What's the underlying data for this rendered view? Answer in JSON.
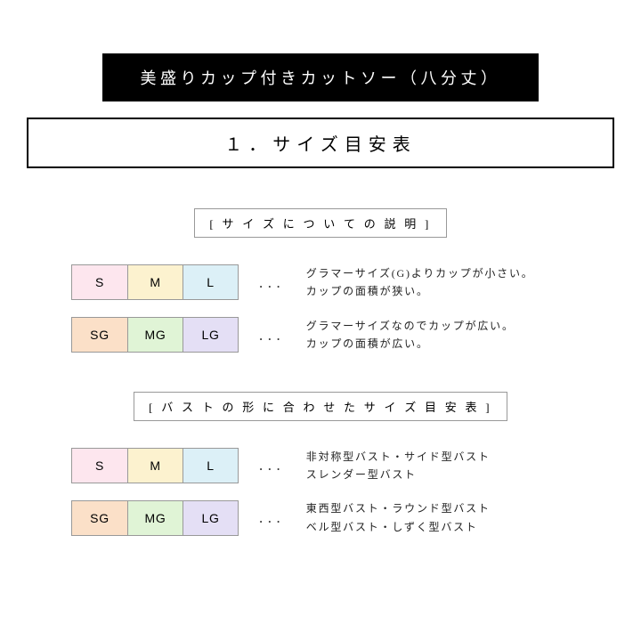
{
  "title": "美盛りカップ付きカットソー（八分丈）",
  "section_header": "１．サイズ目安表",
  "sub1": "[ サ イ ズ に つ い て の 説 明 ]",
  "sub2": "[ バ ス ト の 形 に 合 わ せ た サ イ ズ 目 安 表 ]",
  "dots": "．．．",
  "colors": {
    "s": "#fde6ee",
    "m": "#fcf2cf",
    "l": "#dcf0f7",
    "sg": "#fbe0c8",
    "mg": "#e0f4d6",
    "lg": "#e4dff5"
  },
  "row1": {
    "sizes": [
      "S",
      "M",
      "L"
    ],
    "desc1": "グラマーサイズ(G)よりカップが小さい。",
    "desc2": "カップの面積が狭い。"
  },
  "row2": {
    "sizes": [
      "SG",
      "MG",
      "LG"
    ],
    "desc1": "グラマーサイズなのでカップが広い。",
    "desc2": "カップの面積が広い。"
  },
  "row3": {
    "sizes": [
      "S",
      "M",
      "L"
    ],
    "desc1": "非対称型バスト・サイド型バスト",
    "desc2": "スレンダー型バスト"
  },
  "row4": {
    "sizes": [
      "SG",
      "MG",
      "LG"
    ],
    "desc1": "東西型バスト・ラウンド型バスト",
    "desc2": "ベル型バスト・しずく型バスト"
  }
}
